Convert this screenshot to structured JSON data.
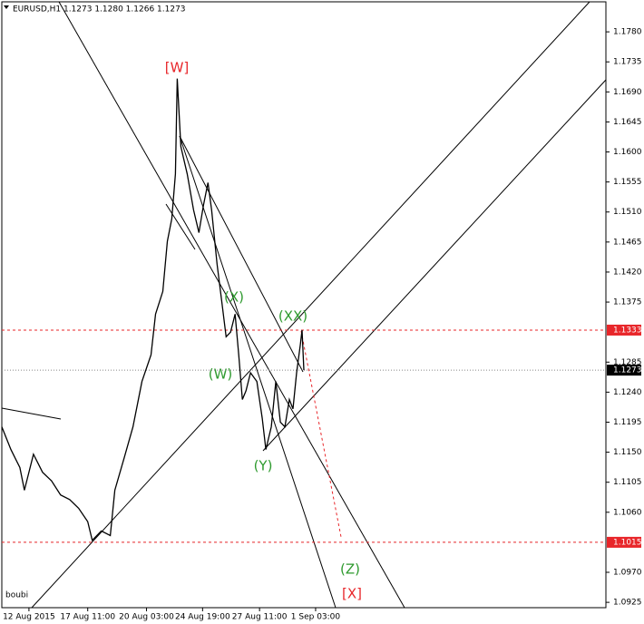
{
  "chart_data": {
    "type": "line",
    "title": "EURUSD,H1  1.1273 1.1280 1.1266 1.1273",
    "footer": "boubi",
    "color": "#000000",
    "x": [
      0,
      10,
      20,
      25,
      35,
      45,
      55,
      65,
      75,
      85,
      95,
      100,
      110,
      120,
      125,
      135,
      145,
      155,
      165,
      170,
      178,
      183,
      188,
      192,
      194,
      198,
      205,
      212,
      218,
      223,
      228,
      232,
      238,
      243,
      248,
      253,
      258,
      262,
      266,
      270,
      275,
      282,
      288,
      292,
      298,
      303,
      308,
      313,
      318,
      322,
      326,
      330,
      332,
      334
    ],
    "values": [
      1.1188,
      1.1154,
      1.1127,
      1.1093,
      1.1147,
      1.112,
      1.1107,
      1.1086,
      1.1079,
      1.1066,
      1.1046,
      1.1018,
      1.1032,
      1.1025,
      1.1093,
      1.114,
      1.1188,
      1.1256,
      1.1296,
      1.1357,
      1.1391,
      1.1466,
      1.15,
      1.1567,
      1.171,
      1.1608,
      1.1567,
      1.1513,
      1.1479,
      1.152,
      1.1554,
      1.1513,
      1.1432,
      1.1378,
      1.1323,
      1.133,
      1.1357,
      1.1296,
      1.1229,
      1.1242,
      1.1269,
      1.1256,
      1.1201,
      1.1154,
      1.1188,
      1.1256,
      1.1195,
      1.1188,
      1.1229,
      1.1215,
      1.1269,
      1.131,
      1.1333,
      1.1273
    ],
    "xlim": [
      0,
      668
    ],
    "xticks": [
      {
        "value": 30,
        "label": "12 Aug 2015"
      },
      {
        "value": 95,
        "label": "17 Aug 11:00"
      },
      {
        "value": 160,
        "label": "20 Aug 03:00"
      },
      {
        "value": 222,
        "label": "24 Aug 19:00"
      },
      {
        "value": 285,
        "label": "27 Aug 11:00"
      },
      {
        "value": 347,
        "label": "1 Sep 03:00"
      }
    ],
    "ylim": [
      1.0917,
      1.1825
    ],
    "yticks": [
      {
        "value": 1.178,
        "label": "1.1780"
      },
      1.1735,
      {
        "value": 1.169,
        "label": "1.1690"
      },
      1.1645,
      {
        "value": 1.16,
        "label": "1.1600"
      },
      1.1555,
      {
        "value": 1.151,
        "label": "1.1510"
      },
      1.1465,
      {
        "value": 1.142,
        "label": "1.1420"
      },
      1.1375,
      1.1285,
      {
        "value": 1.124,
        "label": "1.1240"
      },
      1.1195,
      {
        "value": 1.115,
        "label": "1.1150"
      },
      1.1105,
      {
        "value": 1.106,
        "label": "1.1060"
      },
      {
        "value": 1.097,
        "label": "1.0970"
      },
      1.0925
    ],
    "levels": [
      1.1333,
      1.1015
    ],
    "current_price": 1.1273,
    "annotations": [
      "[W]",
      "(X)",
      "(XX)",
      "(W)",
      "(Y)",
      "(Z)",
      "[X]"
    ]
  }
}
